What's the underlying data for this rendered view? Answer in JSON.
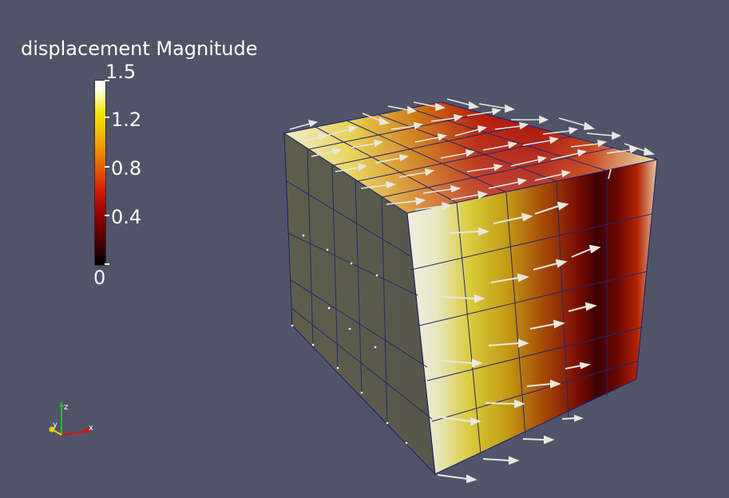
{
  "legend": {
    "title": "displacement Magnitude",
    "ticks": [
      {
        "label": "1.5",
        "value": 1.5
      },
      {
        "label": "1.2",
        "value": 1.2
      },
      {
        "label": "0.8",
        "value": 0.8
      },
      {
        "label": "0.4",
        "value": 0.4
      },
      {
        "label": "0",
        "value": 0
      }
    ],
    "range": [
      0,
      1.5
    ],
    "colormap": [
      "#000000",
      "#990000",
      "#e85a00",
      "#f2e600",
      "#ffffff"
    ]
  },
  "axes": {
    "x_label": "x",
    "y_label": "y",
    "z_label": "z",
    "x_color": "#e01010",
    "y_color": "#e6d200",
    "z_color": "#20c020"
  },
  "scene": {
    "background": "#515468",
    "mesh_edge_color": "#1a1a6e",
    "glyph_color": "#e8e8e0",
    "object": "cube mesh with displacement arrow glyphs"
  }
}
